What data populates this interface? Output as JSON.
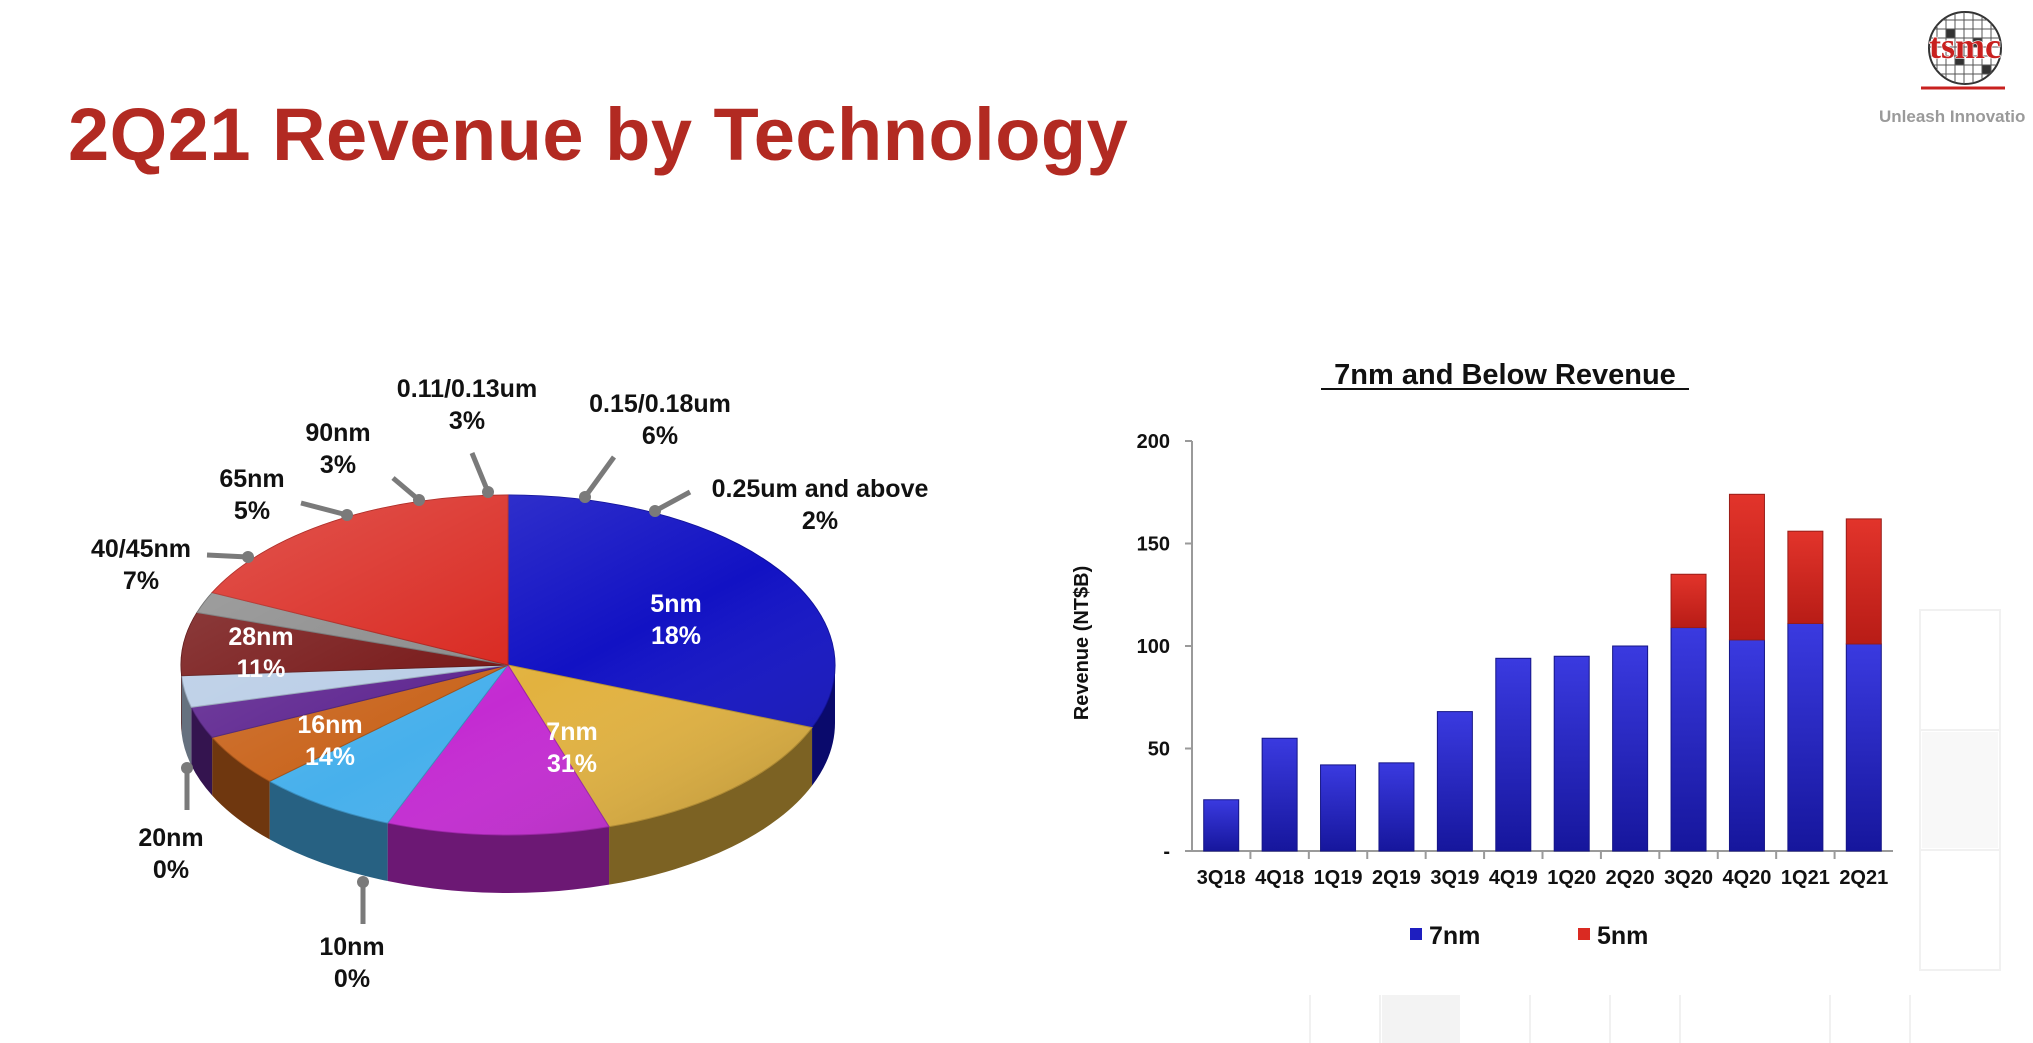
{
  "page": {
    "title": "2Q21 Revenue by Technology"
  },
  "brand": {
    "logo_text": "tsmc",
    "tagline": "Unleash Innovatio"
  },
  "chart_data": [
    {
      "type": "pie",
      "style": "3d",
      "title": "",
      "slices": [
        {
          "label": "7nm",
          "value": 31,
          "display": "31%",
          "color": "#1212c4",
          "label_inside": true
        },
        {
          "label": "10nm",
          "value": 0,
          "display": "0%",
          "color": "#1212c4",
          "label_inside": false
        },
        {
          "label": "16nm",
          "value": 14,
          "display": "14%",
          "color": "#e2b23f",
          "label_inside": true
        },
        {
          "label": "20nm",
          "value": 0,
          "display": "0%",
          "color": "#e2b23f",
          "label_inside": false
        },
        {
          "label": "28nm",
          "value": 11,
          "display": "11%",
          "color": "#c42bd2",
          "label_inside": true
        },
        {
          "label": "40/45nm",
          "value": 7,
          "display": "7%",
          "color": "#47b0ec",
          "label_inside": false
        },
        {
          "label": "65nm",
          "value": 5,
          "display": "5%",
          "color": "#c9641c",
          "label_inside": false
        },
        {
          "label": "90nm",
          "value": 3,
          "display": "3%",
          "color": "#5e2590",
          "label_inside": false
        },
        {
          "label": "0.11/0.13um",
          "value": 3,
          "display": "3%",
          "color": "#b9cde6",
          "label_inside": false
        },
        {
          "label": "0.15/0.18um",
          "value": 6,
          "display": "6%",
          "color": "#761616",
          "label_inside": false
        },
        {
          "label": "0.25um and above",
          "value": 2,
          "display": "2%",
          "color": "#8b8b8b",
          "label_inside": false
        },
        {
          "label": "5nm",
          "value": 18,
          "display": "18%",
          "color": "#d9271f",
          "label_inside": true
        }
      ]
    },
    {
      "type": "bar",
      "stacked": true,
      "title": "7nm and Below Revenue",
      "xlabel": "",
      "ylabel": "Revenue (NT$B)",
      "ylim": [
        0,
        200
      ],
      "yticks": [
        "-",
        "50",
        "100",
        "150",
        "200"
      ],
      "categories": [
        "3Q18",
        "4Q18",
        "1Q19",
        "2Q19",
        "3Q19",
        "4Q19",
        "1Q20",
        "2Q20",
        "3Q20",
        "4Q20",
        "1Q21",
        "2Q21"
      ],
      "series": [
        {
          "name": "7nm",
          "color": "#1e1ec0",
          "values": [
            25,
            55,
            42,
            43,
            68,
            94,
            95,
            100,
            109,
            103,
            111,
            101
          ]
        },
        {
          "name": "5nm",
          "color": "#da2a22",
          "values": [
            0,
            0,
            0,
            0,
            0,
            0,
            0,
            0,
            26,
            71,
            45,
            61
          ]
        }
      ],
      "legend": "bottom"
    }
  ]
}
